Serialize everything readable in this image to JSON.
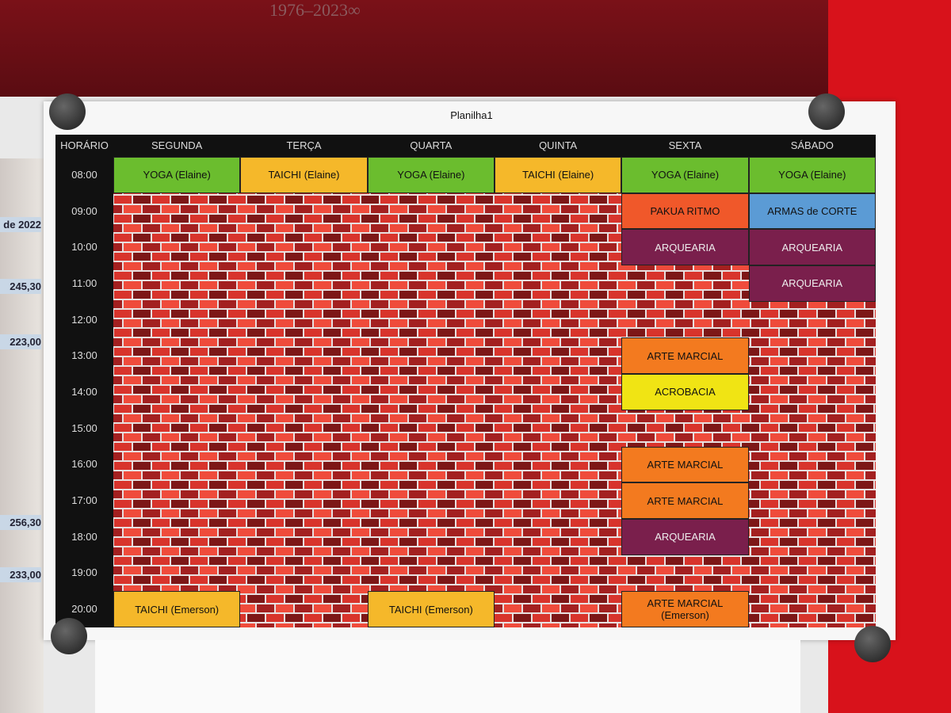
{
  "header": {
    "banner": "1976–2023∞",
    "title": "Planilha1"
  },
  "side_notes": [
    "de 2022",
    "245,30",
    "223,00",
    "256,30",
    "233,00"
  ],
  "table": {
    "columns": [
      "HORÁRIO",
      "SEGUNDA",
      "TERÇA",
      "QUARTA",
      "QUINTA",
      "SEXTA",
      "SÁBADO"
    ],
    "rows": [
      {
        "time": "08:00",
        "cells": [
          {
            "text": "YOGA (Elaine)",
            "color": "#6bbd2e"
          },
          {
            "text": "TAICHI (Elaine)",
            "color": "#f5b82a"
          },
          {
            "text": "YOGA (Elaine)",
            "color": "#6bbd2e"
          },
          {
            "text": "TAICHI (Elaine)",
            "color": "#f5b82a"
          },
          {
            "text": "YOGA (Elaine)",
            "color": "#6bbd2e"
          },
          {
            "text": "YOGA (Elaine)",
            "color": "#6bbd2e"
          }
        ]
      },
      {
        "time": "09:00",
        "cells": [
          null,
          null,
          null,
          null,
          {
            "text": "PAKUA RITMO",
            "color": "#f0582a"
          },
          {
            "text": "ARMAS de CORTE",
            "color": "#5b9bd5"
          }
        ]
      },
      {
        "time": "10:00",
        "cells": [
          null,
          null,
          null,
          null,
          {
            "text": "ARQUEARIA",
            "color": "#7a1f4c"
          },
          {
            "text": "ARQUEARIA",
            "color": "#7a1f4c"
          }
        ]
      },
      {
        "time": "11:00",
        "cells": [
          null,
          null,
          null,
          null,
          null,
          {
            "text": "ARQUEARIA",
            "color": "#7a1f4c"
          }
        ]
      },
      {
        "time": "12:00",
        "cells": [
          null,
          null,
          null,
          null,
          null,
          null
        ]
      },
      {
        "time": "13:00",
        "cells": [
          null,
          null,
          null,
          null,
          {
            "text": "ARTE MARCIAL",
            "color": "#f37a1f"
          },
          null
        ]
      },
      {
        "time": "14:00",
        "cells": [
          null,
          null,
          null,
          null,
          {
            "text": "ACROBACIA",
            "color": "#f0e414"
          },
          null
        ]
      },
      {
        "time": "15:00",
        "cells": [
          null,
          null,
          null,
          null,
          null,
          null
        ]
      },
      {
        "time": "16:00",
        "cells": [
          null,
          null,
          null,
          null,
          {
            "text": "ARTE MARCIAL",
            "color": "#f37a1f"
          },
          null
        ]
      },
      {
        "time": "17:00",
        "cells": [
          null,
          null,
          null,
          null,
          {
            "text": "ARTE MARCIAL",
            "color": "#f37a1f"
          },
          null
        ]
      },
      {
        "time": "18:00",
        "cells": [
          null,
          null,
          null,
          null,
          {
            "text": "ARQUEARIA",
            "color": "#7a1f4c"
          },
          null
        ]
      },
      {
        "time": "19:00",
        "cells": [
          null,
          null,
          null,
          null,
          null,
          null
        ]
      },
      {
        "time": "20:00",
        "cells": [
          {
            "text": "TAICHI (Emerson)",
            "color": "#f5b82a"
          },
          null,
          {
            "text": "TAICHI (Emerson)",
            "color": "#f5b82a"
          },
          null,
          {
            "text": "ARTE MARCIAL\n(Emerson)",
            "color": "#f37a1f"
          },
          null
        ]
      }
    ]
  }
}
